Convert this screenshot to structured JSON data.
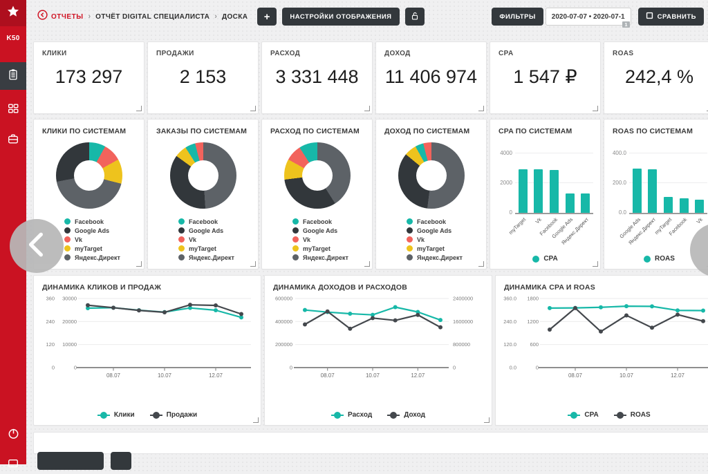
{
  "colors": {
    "teal": "#17b8a8",
    "dark": "#44484d",
    "accent_red": "#d01424",
    "btn_dark": "#33383c"
  },
  "sidebar": {
    "logo_text": "K50",
    "items": [
      {
        "key": "reports",
        "icon": "clipboard-icon",
        "active": true
      },
      {
        "key": "dashboards",
        "icon": "grid-icon",
        "active": false
      },
      {
        "key": "projects",
        "icon": "briefcase-icon",
        "active": false
      }
    ]
  },
  "header": {
    "breadcrumb": [
      {
        "label": "ОТЧЕТЫ"
      },
      {
        "label": "ОТЧЁТ DIGITAL СПЕЦИАЛИСТА"
      },
      {
        "label": "ДОСКА"
      }
    ],
    "add_button": "+",
    "settings_button": "НАСТРОЙКИ ОТОБРАЖЕНИЯ",
    "filters_button": "ФИЛЬТРЫ",
    "date_range": "2020-07-07 • 2020-07-1",
    "date_badge": "1",
    "compare_button": "СРАВНИТЬ"
  },
  "kpis": [
    {
      "key": "clicks",
      "label": "КЛИКИ",
      "value": "173 297"
    },
    {
      "key": "sales",
      "label": "ПРОДАЖИ",
      "value": "2 153"
    },
    {
      "key": "spend",
      "label": "РАСХОД",
      "value": "3 331 448"
    },
    {
      "key": "revenue",
      "label": "ДОХОД",
      "value": "11 406 974"
    },
    {
      "key": "cpa",
      "label": "CPA",
      "value": "1 547 ₽"
    },
    {
      "key": "roas",
      "label": "ROAS",
      "value": "242,4 %"
    }
  ],
  "systems": [
    {
      "name": "Facebook",
      "color": "#17b8a8"
    },
    {
      "name": "Google Ads",
      "color": "#32373b"
    },
    {
      "name": "Vk",
      "color": "#f2635c"
    },
    {
      "name": "myTarget",
      "color": "#eec31d"
    },
    {
      "name": "Яндекс.Директ",
      "color": "#5d6267"
    }
  ],
  "chart_data": [
    {
      "id": "clicks-by-system",
      "type": "donut",
      "title": "КЛИКИ ПО СИСТЕМАМ",
      "segments": [
        {
          "system": "Facebook",
          "pct": 8
        },
        {
          "system": "Vk",
          "pct": 9
        },
        {
          "system": "myTarget",
          "pct": 12
        },
        {
          "system": "Яндекс.Директ",
          "pct": 43
        },
        {
          "system": "Google Ads",
          "pct": 28
        }
      ]
    },
    {
      "id": "orders-by-system",
      "type": "donut",
      "title": "ЗАКАЗЫ ПО СИСТЕМАМ",
      "segments": [
        {
          "system": "Яндекс.Директ",
          "pct": 49
        },
        {
          "system": "Google Ads",
          "pct": 36
        },
        {
          "system": "myTarget",
          "pct": 6
        },
        {
          "system": "Facebook",
          "pct": 5
        },
        {
          "system": "Vk",
          "pct": 4
        }
      ]
    },
    {
      "id": "spend-by-system",
      "type": "donut",
      "title": "РАСХОД ПО СИСТЕМАМ",
      "segments": [
        {
          "system": "Яндекс.Директ",
          "pct": 41
        },
        {
          "system": "Google Ads",
          "pct": 32
        },
        {
          "system": "myTarget",
          "pct": 10
        },
        {
          "system": "Vk",
          "pct": 8
        },
        {
          "system": "Facebook",
          "pct": 9
        }
      ]
    },
    {
      "id": "revenue-by-system",
      "type": "donut",
      "title": "ДОХОД ПО СИСТЕМАМ",
      "segments": [
        {
          "system": "Яндекс.Директ",
          "pct": 52
        },
        {
          "system": "Google Ads",
          "pct": 34
        },
        {
          "system": "myTarget",
          "pct": 6
        },
        {
          "system": "Facebook",
          "pct": 4
        },
        {
          "system": "Vk",
          "pct": 4
        }
      ]
    },
    {
      "id": "cpa-by-system",
      "type": "bar",
      "title": "CPA ПО СИСТЕМАМ",
      "color": "teal",
      "series_label": "CPA",
      "y_ticks": [
        "0",
        "2000",
        "4000"
      ],
      "categories": [
        "myTarget",
        "Vk",
        "Facebook",
        "Google Ads",
        "Яндекс.Директ"
      ],
      "values": [
        2950,
        2950,
        2870,
        1320,
        1310
      ]
    },
    {
      "id": "roas-by-system",
      "type": "bar",
      "title": "ROAS ПО СИСТЕМАМ",
      "color": "teal",
      "series_label": "ROAS",
      "y_ticks": [
        "0.0",
        "200.0",
        "400.0"
      ],
      "categories": [
        "Google Ads",
        "Яндекс.Директ",
        "myTarget",
        "Facebook",
        "Vk"
      ],
      "values": [
        300,
        295,
        105,
        98,
        88
      ]
    },
    {
      "id": "clicks-sales-dynamics",
      "type": "line",
      "title": "ДИНАМИКА КЛИКОВ И ПРОДАЖ",
      "axes": {
        "layout": "dual-left",
        "col1": {
          "ticks": [
            "0",
            "120",
            "240",
            "360"
          ]
        },
        "col2": {
          "ticks": [
            "0",
            "10000",
            "20000",
            "30000"
          ]
        }
      },
      "x_ticks": [
        {
          "i": 1,
          "label": "08.07"
        },
        {
          "i": 3,
          "label": "10.07"
        },
        {
          "i": 5,
          "label": "12.07"
        }
      ],
      "series": [
        {
          "name": "Клики",
          "color": "teal",
          "axis": "col2",
          "values": [
            25800,
            26000,
            24900,
            24100,
            25900,
            24900,
            21800
          ]
        },
        {
          "name": "Продажи",
          "color": "dark",
          "axis": "col1",
          "values": [
            325,
            312,
            298,
            288,
            327,
            324,
            279
          ]
        }
      ]
    },
    {
      "id": "revenue-spend-dynamics",
      "type": "line",
      "title": "ДИНАМИКА ДОХОДОВ И РАСХОДОВ",
      "axes": {
        "layout": "left-right",
        "col1": {
          "ticks": [
            "0",
            "200000",
            "400000",
            "600000"
          ]
        },
        "col2": {
          "ticks": [
            "0",
            "800000",
            "1600000",
            "2400000"
          ]
        }
      },
      "x_ticks": [
        {
          "i": 1,
          "label": "08.07"
        },
        {
          "i": 3,
          "label": "10.07"
        },
        {
          "i": 5,
          "label": "12.07"
        }
      ],
      "series": [
        {
          "name": "Расход",
          "color": "teal",
          "axis": "col1",
          "values": [
            500000,
            482000,
            468000,
            458000,
            525000,
            483000,
            413000
          ]
        },
        {
          "name": "Доход",
          "color": "dark",
          "axis": "col2",
          "values": [
            1500000,
            1950000,
            1350000,
            1720000,
            1640000,
            1830000,
            1400000
          ]
        }
      ]
    },
    {
      "id": "cpa-roas-dynamics",
      "type": "line",
      "title": "ДИНАМИКА CPA И ROAS",
      "axes": {
        "layout": "dual-left",
        "col1": {
          "ticks": [
            "0.0",
            "120.0",
            "240.0",
            "360.0"
          ]
        },
        "col2": {
          "ticks": [
            "0",
            "600",
            "1200",
            "1800"
          ]
        }
      },
      "x_ticks": [
        {
          "i": 1,
          "label": "08.07"
        },
        {
          "i": 3,
          "label": "10.07"
        },
        {
          "i": 5,
          "label": "12.07"
        }
      ],
      "series": [
        {
          "name": "CPA",
          "color": "teal",
          "axis": "col2",
          "values": [
            1550,
            1555,
            1570,
            1600,
            1595,
            1490,
            1485
          ]
        },
        {
          "name": "ROAS",
          "color": "dark",
          "axis": "col1",
          "values": [
            198,
            310,
            188,
            272,
            208,
            276,
            242
          ]
        }
      ]
    }
  ]
}
